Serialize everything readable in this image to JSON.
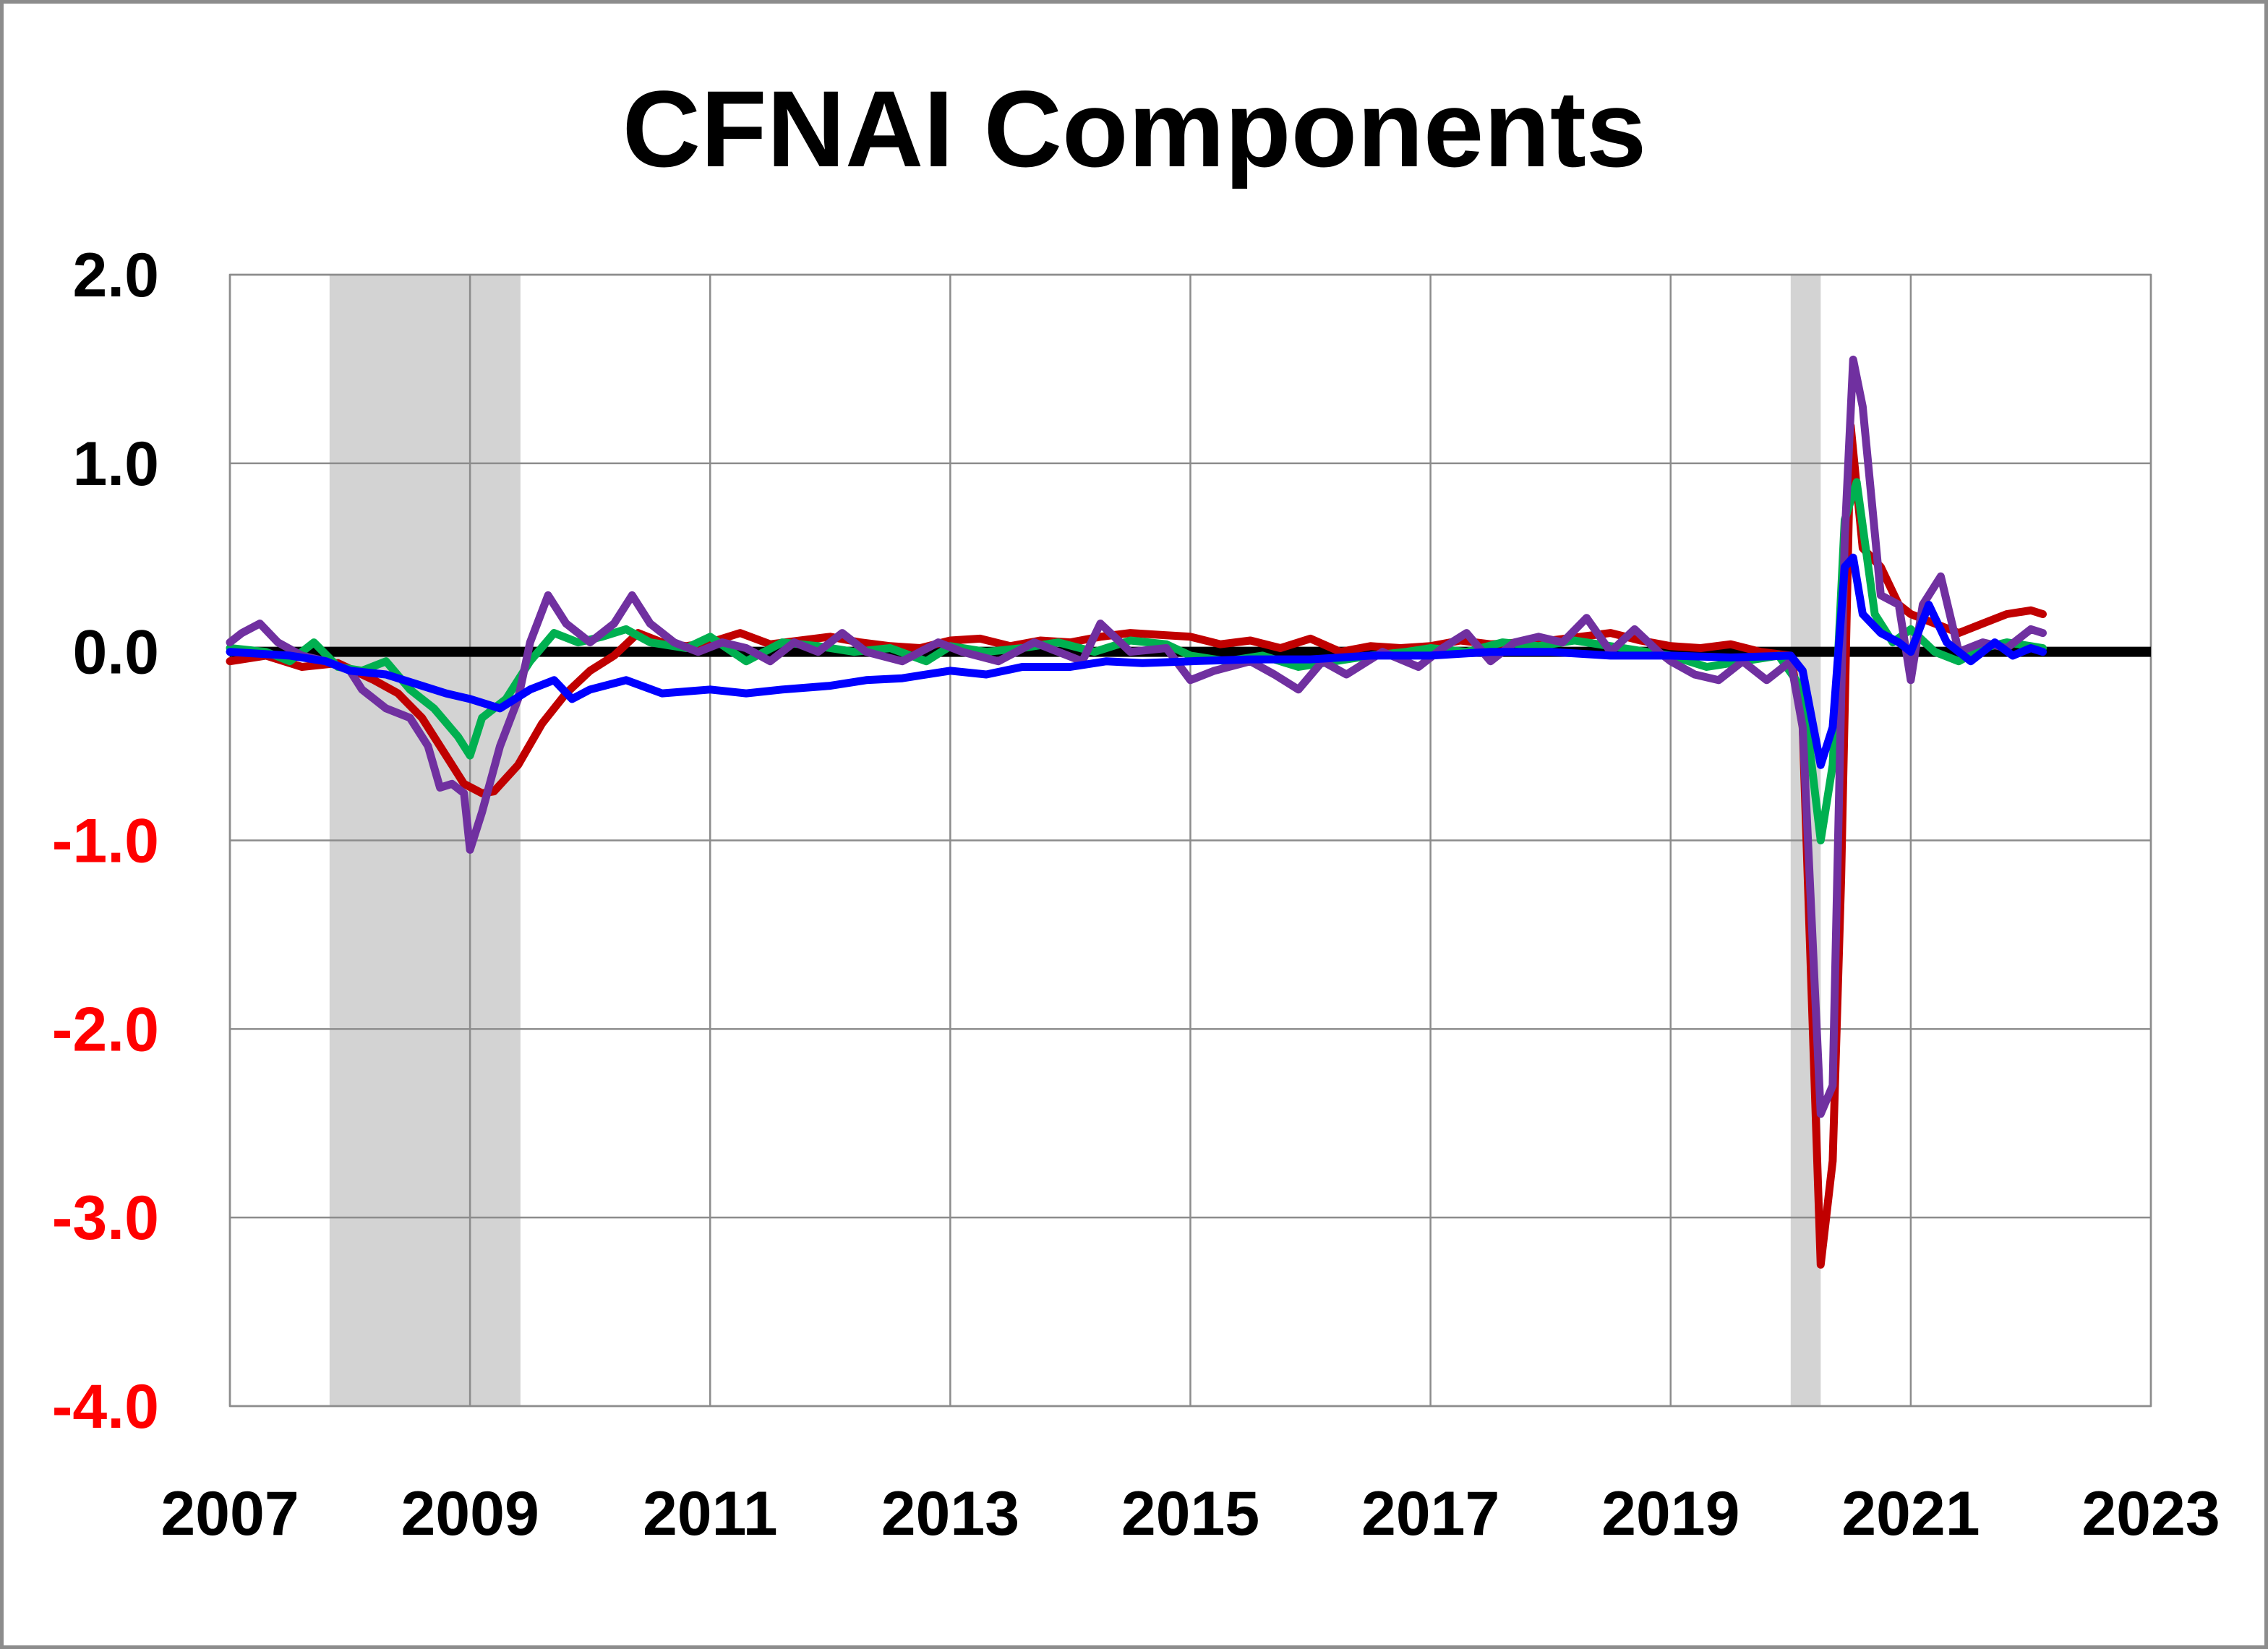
{
  "chart_data": {
    "type": "line",
    "title": "CFNAI Components",
    "xlabel": "",
    "ylabel": "",
    "xlim": [
      2007,
      2023
    ],
    "ylim": [
      -4.0,
      2.0
    ],
    "x_ticks": [
      "2007",
      "2009",
      "2011",
      "2013",
      "2015",
      "2017",
      "2019",
      "2021",
      "2023"
    ],
    "y_ticks": [
      {
        "value": 2.0,
        "label": "2.0",
        "color": "#000000"
      },
      {
        "value": 1.0,
        "label": "1.0",
        "color": "#000000"
      },
      {
        "value": 0.0,
        "label": "0.0",
        "color": "#000000"
      },
      {
        "value": -1.0,
        "label": "-1.0",
        "color": "#ff0000"
      },
      {
        "value": -2.0,
        "label": "-2.0",
        "color": "#ff0000"
      },
      {
        "value": -3.0,
        "label": "-3.0",
        "color": "#ff0000"
      },
      {
        "value": -4.0,
        "label": "-4.0",
        "color": "#ff0000"
      }
    ],
    "grid": true,
    "legend": "none",
    "zero_line_color": "#000000",
    "recession_shading": [
      {
        "start": 2007.83,
        "end": 2009.42
      },
      {
        "start": 2020.0,
        "end": 2020.25
      }
    ],
    "shading_color": "#d3d3d3",
    "series": [
      {
        "color": "#c00000",
        "points": [
          [
            2007.0,
            -0.05
          ],
          [
            2007.3,
            -0.02
          ],
          [
            2007.6,
            -0.08
          ],
          [
            2007.9,
            -0.06
          ],
          [
            2008.2,
            -0.15
          ],
          [
            2008.4,
            -0.22
          ],
          [
            2008.6,
            -0.35
          ],
          [
            2008.8,
            -0.55
          ],
          [
            2008.95,
            -0.7
          ],
          [
            2009.1,
            -0.75
          ],
          [
            2009.2,
            -0.74
          ],
          [
            2009.4,
            -0.6
          ],
          [
            2009.6,
            -0.38
          ],
          [
            2009.8,
            -0.22
          ],
          [
            2010.0,
            -0.1
          ],
          [
            2010.2,
            -0.02
          ],
          [
            2010.4,
            0.1
          ],
          [
            2010.6,
            0.05
          ],
          [
            2010.8,
            0.03
          ],
          [
            2011.0,
            0.05
          ],
          [
            2011.25,
            0.1
          ],
          [
            2011.5,
            0.04
          ],
          [
            2011.75,
            0.06
          ],
          [
            2012.0,
            0.08
          ],
          [
            2012.25,
            0.05
          ],
          [
            2012.5,
            0.03
          ],
          [
            2012.75,
            0.02
          ],
          [
            2013.0,
            0.06
          ],
          [
            2013.25,
            0.07
          ],
          [
            2013.5,
            0.03
          ],
          [
            2013.75,
            0.06
          ],
          [
            2014.0,
            0.05
          ],
          [
            2014.25,
            0.08
          ],
          [
            2014.5,
            0.1
          ],
          [
            2014.75,
            0.09
          ],
          [
            2015.0,
            0.08
          ],
          [
            2015.25,
            0.04
          ],
          [
            2015.5,
            0.06
          ],
          [
            2015.75,
            0.02
          ],
          [
            2016.0,
            0.07
          ],
          [
            2016.25,
            0.0
          ],
          [
            2016.5,
            0.03
          ],
          [
            2016.75,
            0.02
          ],
          [
            2017.0,
            0.03
          ],
          [
            2017.25,
            0.06
          ],
          [
            2017.5,
            0.04
          ],
          [
            2017.75,
            0.05
          ],
          [
            2018.0,
            0.06
          ],
          [
            2018.25,
            0.08
          ],
          [
            2018.5,
            0.1
          ],
          [
            2018.75,
            0.06
          ],
          [
            2019.0,
            0.03
          ],
          [
            2019.25,
            0.02
          ],
          [
            2019.5,
            0.04
          ],
          [
            2019.75,
            0.0
          ],
          [
            2020.0,
            -0.02
          ],
          [
            2020.1,
            -0.4
          ],
          [
            2020.25,
            -3.25
          ],
          [
            2020.35,
            -2.7
          ],
          [
            2020.42,
            -1.2
          ],
          [
            2020.5,
            1.2
          ],
          [
            2020.6,
            0.55
          ],
          [
            2020.75,
            0.45
          ],
          [
            2020.9,
            0.25
          ],
          [
            2021.0,
            0.2
          ],
          [
            2021.2,
            0.15
          ],
          [
            2021.4,
            0.1
          ],
          [
            2021.6,
            0.15
          ],
          [
            2021.8,
            0.2
          ],
          [
            2022.0,
            0.22
          ],
          [
            2022.1,
            0.2
          ]
        ]
      },
      {
        "color": "#00b050",
        "points": [
          [
            2007.0,
            0.02
          ],
          [
            2007.3,
            0.0
          ],
          [
            2007.5,
            -0.05
          ],
          [
            2007.7,
            0.05
          ],
          [
            2007.9,
            -0.08
          ],
          [
            2008.1,
            -0.1
          ],
          [
            2008.3,
            -0.05
          ],
          [
            2008.5,
            -0.2
          ],
          [
            2008.7,
            -0.3
          ],
          [
            2008.9,
            -0.45
          ],
          [
            2009.0,
            -0.55
          ],
          [
            2009.1,
            -0.35
          ],
          [
            2009.3,
            -0.25
          ],
          [
            2009.5,
            -0.05
          ],
          [
            2009.7,
            0.1
          ],
          [
            2009.9,
            0.05
          ],
          [
            2010.1,
            0.08
          ],
          [
            2010.3,
            0.12
          ],
          [
            2010.5,
            0.05
          ],
          [
            2010.8,
            0.02
          ],
          [
            2011.0,
            0.08
          ],
          [
            2011.3,
            -0.05
          ],
          [
            2011.6,
            0.05
          ],
          [
            2011.9,
            0.03
          ],
          [
            2012.2,
            0.0
          ],
          [
            2012.5,
            0.02
          ],
          [
            2012.8,
            -0.05
          ],
          [
            2013.0,
            0.03
          ],
          [
            2013.3,
            0.0
          ],
          [
            2013.6,
            0.02
          ],
          [
            2013.9,
            0.05
          ],
          [
            2014.2,
            0.0
          ],
          [
            2014.5,
            0.06
          ],
          [
            2014.8,
            0.04
          ],
          [
            2015.0,
            -0.02
          ],
          [
            2015.3,
            -0.05
          ],
          [
            2015.6,
            -0.02
          ],
          [
            2015.9,
            -0.08
          ],
          [
            2016.2,
            -0.05
          ],
          [
            2016.5,
            -0.02
          ],
          [
            2016.8,
            0.0
          ],
          [
            2017.0,
            0.02
          ],
          [
            2017.3,
            0.0
          ],
          [
            2017.6,
            0.05
          ],
          [
            2017.9,
            0.03
          ],
          [
            2018.2,
            0.06
          ],
          [
            2018.5,
            0.03
          ],
          [
            2018.8,
            0.0
          ],
          [
            2019.0,
            -0.02
          ],
          [
            2019.3,
            -0.08
          ],
          [
            2019.6,
            -0.05
          ],
          [
            2019.9,
            -0.02
          ],
          [
            2020.1,
            -0.2
          ],
          [
            2020.25,
            -1.0
          ],
          [
            2020.35,
            -0.6
          ],
          [
            2020.45,
            0.7
          ],
          [
            2020.55,
            0.9
          ],
          [
            2020.7,
            0.2
          ],
          [
            2020.85,
            0.05
          ],
          [
            2021.0,
            0.12
          ],
          [
            2021.2,
            0.0
          ],
          [
            2021.4,
            -0.05
          ],
          [
            2021.6,
            0.02
          ],
          [
            2021.8,
            0.05
          ],
          [
            2022.0,
            0.03
          ],
          [
            2022.1,
            0.02
          ]
        ]
      },
      {
        "color": "#7030a0",
        "points": [
          [
            2007.0,
            0.05
          ],
          [
            2007.1,
            0.1
          ],
          [
            2007.25,
            0.15
          ],
          [
            2007.4,
            0.05
          ],
          [
            2007.6,
            -0.02
          ],
          [
            2007.8,
            -0.05
          ],
          [
            2008.0,
            -0.1
          ],
          [
            2008.1,
            -0.2
          ],
          [
            2008.3,
            -0.3
          ],
          [
            2008.5,
            -0.35
          ],
          [
            2008.65,
            -0.5
          ],
          [
            2008.75,
            -0.72
          ],
          [
            2008.85,
            -0.7
          ],
          [
            2008.95,
            -0.75
          ],
          [
            2009.0,
            -1.05
          ],
          [
            2009.1,
            -0.85
          ],
          [
            2009.25,
            -0.5
          ],
          [
            2009.4,
            -0.25
          ],
          [
            2009.5,
            0.05
          ],
          [
            2009.65,
            0.3
          ],
          [
            2009.8,
            0.15
          ],
          [
            2010.0,
            0.05
          ],
          [
            2010.2,
            0.15
          ],
          [
            2010.35,
            0.3
          ],
          [
            2010.5,
            0.15
          ],
          [
            2010.7,
            0.05
          ],
          [
            2010.9,
            0.0
          ],
          [
            2011.1,
            0.05
          ],
          [
            2011.3,
            0.02
          ],
          [
            2011.5,
            -0.05
          ],
          [
            2011.7,
            0.05
          ],
          [
            2011.9,
            0.0
          ],
          [
            2012.1,
            0.1
          ],
          [
            2012.3,
            0.0
          ],
          [
            2012.6,
            -0.05
          ],
          [
            2012.9,
            0.05
          ],
          [
            2013.1,
            0.0
          ],
          [
            2013.4,
            -0.05
          ],
          [
            2013.7,
            0.05
          ],
          [
            2013.9,
            0.0
          ],
          [
            2014.1,
            -0.05
          ],
          [
            2014.25,
            0.15
          ],
          [
            2014.5,
            0.0
          ],
          [
            2014.8,
            0.02
          ],
          [
            2015.0,
            -0.15
          ],
          [
            2015.2,
            -0.1
          ],
          [
            2015.5,
            -0.05
          ],
          [
            2015.7,
            -0.12
          ],
          [
            2015.9,
            -0.2
          ],
          [
            2016.1,
            -0.05
          ],
          [
            2016.3,
            -0.12
          ],
          [
            2016.6,
            0.0
          ],
          [
            2016.9,
            -0.08
          ],
          [
            2017.1,
            0.02
          ],
          [
            2017.3,
            0.1
          ],
          [
            2017.5,
            -0.05
          ],
          [
            2017.7,
            0.05
          ],
          [
            2017.9,
            0.08
          ],
          [
            2018.1,
            0.05
          ],
          [
            2018.3,
            0.18
          ],
          [
            2018.5,
            0.0
          ],
          [
            2018.7,
            0.12
          ],
          [
            2018.9,
            0.0
          ],
          [
            2019.0,
            -0.05
          ],
          [
            2019.2,
            -0.12
          ],
          [
            2019.4,
            -0.15
          ],
          [
            2019.6,
            -0.05
          ],
          [
            2019.8,
            -0.15
          ],
          [
            2020.0,
            -0.05
          ],
          [
            2020.1,
            -0.4
          ],
          [
            2020.25,
            -2.45
          ],
          [
            2020.35,
            -2.3
          ],
          [
            2020.45,
            0.6
          ],
          [
            2020.52,
            1.55
          ],
          [
            2020.6,
            1.3
          ],
          [
            2020.75,
            0.3
          ],
          [
            2020.9,
            0.25
          ],
          [
            2021.0,
            -0.15
          ],
          [
            2021.1,
            0.25
          ],
          [
            2021.25,
            0.4
          ],
          [
            2021.4,
            0.0
          ],
          [
            2021.6,
            0.05
          ],
          [
            2021.8,
            0.02
          ],
          [
            2022.0,
            0.12
          ],
          [
            2022.1,
            0.1
          ]
        ]
      },
      {
        "color": "#0000ff",
        "points": [
          [
            2007.0,
            0.0
          ],
          [
            2007.5,
            -0.02
          ],
          [
            2007.8,
            -0.05
          ],
          [
            2008.0,
            -0.1
          ],
          [
            2008.3,
            -0.12
          ],
          [
            2008.6,
            -0.18
          ],
          [
            2008.8,
            -0.22
          ],
          [
            2009.0,
            -0.25
          ],
          [
            2009.25,
            -0.3
          ],
          [
            2009.5,
            -0.2
          ],
          [
            2009.7,
            -0.15
          ],
          [
            2009.85,
            -0.25
          ],
          [
            2010.0,
            -0.2
          ],
          [
            2010.3,
            -0.15
          ],
          [
            2010.6,
            -0.22
          ],
          [
            2011.0,
            -0.2
          ],
          [
            2011.3,
            -0.22
          ],
          [
            2011.6,
            -0.2
          ],
          [
            2012.0,
            -0.18
          ],
          [
            2012.3,
            -0.15
          ],
          [
            2012.6,
            -0.14
          ],
          [
            2013.0,
            -0.1
          ],
          [
            2013.3,
            -0.12
          ],
          [
            2013.6,
            -0.08
          ],
          [
            2014.0,
            -0.08
          ],
          [
            2014.3,
            -0.05
          ],
          [
            2014.6,
            -0.06
          ],
          [
            2015.0,
            -0.05
          ],
          [
            2015.5,
            -0.04
          ],
          [
            2016.0,
            -0.04
          ],
          [
            2016.5,
            -0.02
          ],
          [
            2017.0,
            -0.02
          ],
          [
            2017.5,
            0.0
          ],
          [
            2018.0,
            0.0
          ],
          [
            2018.5,
            -0.02
          ],
          [
            2019.0,
            -0.02
          ],
          [
            2019.5,
            -0.03
          ],
          [
            2020.0,
            -0.02
          ],
          [
            2020.1,
            -0.1
          ],
          [
            2020.25,
            -0.6
          ],
          [
            2020.35,
            -0.4
          ],
          [
            2020.45,
            0.45
          ],
          [
            2020.52,
            0.5
          ],
          [
            2020.6,
            0.2
          ],
          [
            2020.75,
            0.1
          ],
          [
            2020.9,
            0.05
          ],
          [
            2021.0,
            0.0
          ],
          [
            2021.15,
            0.25
          ],
          [
            2021.3,
            0.05
          ],
          [
            2021.5,
            -0.05
          ],
          [
            2021.7,
            0.05
          ],
          [
            2021.85,
            -0.02
          ],
          [
            2022.0,
            0.02
          ],
          [
            2022.1,
            0.0
          ]
        ]
      }
    ]
  }
}
